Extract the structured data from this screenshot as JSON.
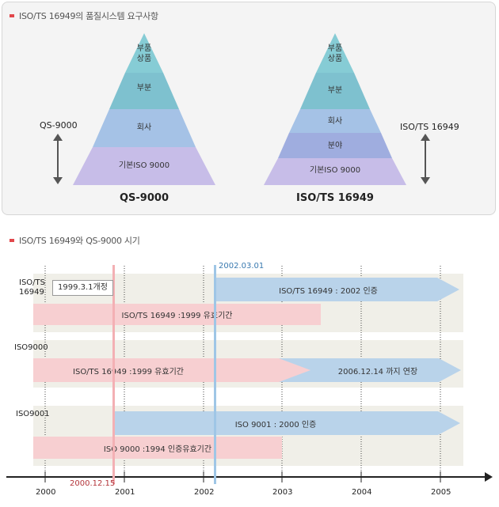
{
  "section1": {
    "title": "ISO/TS 16949의 품질시스템 요구사항",
    "qs_pyramid": {
      "levels": [
        "부품\n상품",
        "부분",
        "회사",
        "기본ISO 9000"
      ],
      "title": "QS-9000",
      "side_label": "QS-9000"
    },
    "iso_pyramid": {
      "levels": [
        "부품\n상품",
        "부분",
        "회사",
        "분야",
        "기본ISO 9000"
      ],
      "title": "ISO/TS 16949",
      "side_label": "ISO/TS 16949"
    },
    "colors": {
      "top": "#86ccd5",
      "upper": "#7ec1cf",
      "middle": "#a5c2e6",
      "fourth": "#9faddf",
      "bottom": "#c7bde8"
    }
  },
  "section2": {
    "title": "ISO/TS 16949와 QS-9000 시기",
    "rows": [
      {
        "label": "ISO/TS\n16949",
        "callout": "1999.3.1개정",
        "bars": [
          {
            "text": "ISO/TS 16949 : 2002 인증",
            "color": "blue"
          },
          {
            "text": "ISO/TS 16949 :1999 유효기간",
            "color": "pink"
          }
        ]
      },
      {
        "label": "ISO9000",
        "bars": [
          {
            "text": "ISO/TS 16949 :1999 유효기간",
            "color": "pink"
          },
          {
            "text": "2006.12.14 까지 연장",
            "color": "blue"
          }
        ]
      },
      {
        "label": "ISO9001",
        "bars": [
          {
            "text": "ISO 9001 : 2000 인증",
            "color": "blue"
          },
          {
            "text": "ISO 9000 :1994 인증유효기간",
            "color": "pink"
          }
        ]
      }
    ],
    "markers": {
      "red": "2000.12.15",
      "blue": "2002.03.01"
    },
    "years": [
      "2000",
      "2001",
      "2002",
      "2003",
      "2004",
      "2005"
    ],
    "colors": {
      "pink": "#f7cfd1",
      "blue": "#b9d3ea",
      "band": "#f0efe8",
      "red_line": "#f3b0b4",
      "blue_line": "#9fc6e6"
    }
  }
}
